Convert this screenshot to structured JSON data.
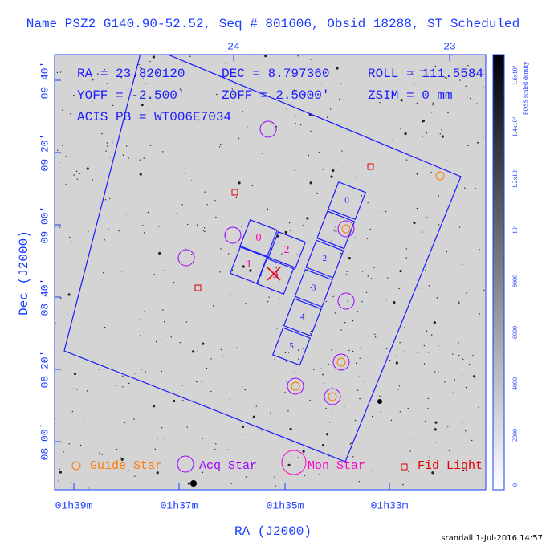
{
  "header": {
    "title": "Name PSZ2 G140.90-52.52, Seq # 801606, Obsid 18288, ST Scheduled"
  },
  "info": [
    "RA = 23.820120",
    "DEC = 8.797360",
    "ROLL = 111.5584",
    "YOFF = -2.500'",
    "ZOFF = 2.5000'",
    "ZSIM = 0 mm",
    "ACIS PB = WT006E7034"
  ],
  "axes": {
    "x_label": "RA (J2000)",
    "y_label": "Dec (J2000)",
    "x_ticks": [
      "01h39m",
      "01h37m",
      "01h35m",
      "01h33m"
    ],
    "x2_ticks": [
      "24",
      "23"
    ],
    "y_ticks": [
      "09 40'",
      "09 20'",
      "09 00'",
      "08 40'",
      "08 20'",
      "08 00'"
    ]
  },
  "chips": {
    "imaging": [
      "0",
      "2",
      "1",
      "3"
    ],
    "spectroscopy": [
      "0",
      "1",
      "2",
      "3",
      "4",
      "5"
    ]
  },
  "legend": [
    "Guide Star",
    "Acq Star",
    "Mon Star",
    "Fid Light"
  ],
  "colorbar": {
    "label": "POSS scaled density",
    "ticks": [
      "0",
      "2000",
      "4000",
      "6000",
      "8000",
      "10⁴",
      "1.2x10⁴",
      "1.4x10⁴",
      "1.6x10⁴"
    ]
  },
  "footer": "srandall   1-Jul-2016 14:57"
}
